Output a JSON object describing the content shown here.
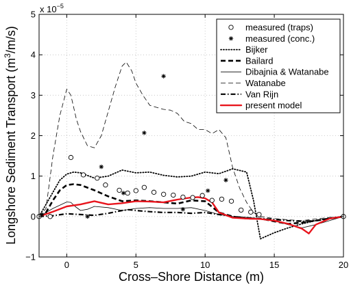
{
  "chart_data": {
    "type": "line",
    "title": "",
    "xlabel": "Cross–Shore Distance (m)",
    "ylabel_prefix": "Longshore Sediment Transport (m",
    "ylabel_sup": "3",
    "ylabel_suffix": "/m/s)",
    "y_multiplier_base": "x 10",
    "y_multiplier_exp": "−5",
    "xlim": [
      -2,
      20
    ],
    "ylim": [
      -1,
      5
    ],
    "grid": true,
    "legend_position": "top-right",
    "x_ticks": [
      0,
      5,
      10,
      15,
      20
    ],
    "x_tick_labels": [
      "0",
      "5",
      "10",
      "15",
      "20"
    ],
    "y_ticks": [
      -1,
      0,
      1,
      2,
      3,
      4,
      5
    ],
    "y_tick_labels": [
      "−1",
      "0",
      "1",
      "2",
      "3",
      "4",
      "5"
    ],
    "series": [
      {
        "name": "measured (traps)",
        "kind": "marker-circle",
        "color": "#000000",
        "x": [
          -2,
          -1.2,
          0.3,
          1.2,
          2.2,
          2.8,
          3.8,
          4.4,
          5.0,
          5.6,
          6.3,
          7.0,
          7.7,
          8.4,
          9.1,
          9.8,
          10.5,
          11.2,
          11.9,
          12.6,
          13.3,
          13.9,
          20
        ],
        "y": [
          0.0,
          0.0,
          1.46,
          1.03,
          0.95,
          0.78,
          0.65,
          0.58,
          0.64,
          0.72,
          0.6,
          0.55,
          0.53,
          0.48,
          0.47,
          0.52,
          0.4,
          0.43,
          0.38,
          0.16,
          0.11,
          0.05,
          0.0
        ]
      },
      {
        "name": "measured (conc.)",
        "kind": "marker-star",
        "color": "#000000",
        "x": [
          -1.8,
          1.5,
          2.5,
          4.1,
          5.6,
          7.0,
          8.4,
          10.2,
          11.5
        ],
        "y": [
          0.05,
          0.0,
          1.23,
          0.58,
          2.07,
          3.47,
          0.18,
          0.64,
          0.9
        ]
      },
      {
        "name": "Bijker",
        "kind": "dotted",
        "color": "#000000",
        "x": [
          -2,
          -1,
          -0.5,
          0,
          0.5,
          1,
          2,
          3,
          4,
          5,
          6,
          7,
          8,
          9,
          10,
          11,
          12,
          13,
          13.5,
          14,
          15,
          16,
          17,
          18,
          19,
          20
        ],
        "y": [
          0.0,
          0.6,
          0.9,
          1.05,
          1.1,
          1.08,
          0.95,
          1.0,
          1.15,
          1.08,
          1.1,
          1.02,
          0.98,
          1.0,
          1.1,
          1.06,
          1.18,
          1.1,
          0.4,
          -0.55,
          -0.4,
          -0.28,
          -0.18,
          -0.1,
          -0.04,
          0.0
        ]
      },
      {
        "name": "Bailard",
        "kind": "dashed-thick",
        "color": "#000000",
        "x": [
          -2,
          -1.5,
          -1,
          -0.5,
          0,
          0.5,
          1,
          2,
          3,
          4,
          5,
          6,
          7,
          8,
          9,
          10,
          11,
          12,
          13,
          14,
          15,
          16,
          17,
          18,
          19,
          20
        ],
        "y": [
          0.0,
          0.1,
          0.4,
          0.65,
          0.78,
          0.8,
          0.78,
          0.65,
          0.5,
          0.38,
          0.4,
          0.38,
          0.35,
          0.32,
          0.4,
          0.38,
          0.1,
          0.0,
          -0.05,
          -0.05,
          -0.12,
          -0.18,
          -0.15,
          -0.1,
          -0.05,
          0.0
        ]
      },
      {
        "name": "Dibajnia & Watanabe",
        "kind": "solid-thin",
        "color": "#000000",
        "x": [
          -2,
          -1,
          -0.5,
          0,
          0.3,
          0.6,
          1,
          1.5,
          2,
          3,
          4,
          5,
          6,
          7,
          8,
          9,
          10,
          11,
          12,
          13,
          14,
          15,
          16,
          17,
          18,
          19,
          20
        ],
        "y": [
          0.0,
          0.2,
          0.28,
          0.36,
          0.35,
          0.25,
          0.15,
          0.18,
          0.25,
          0.22,
          0.15,
          0.2,
          0.22,
          0.2,
          0.2,
          0.22,
          0.15,
          0.05,
          0.0,
          -0.02,
          -0.05,
          -0.1,
          -0.2,
          -0.28,
          -0.2,
          -0.1,
          0.0
        ]
      },
      {
        "name": "Watanabe",
        "kind": "dashed-thin",
        "color": "#000000",
        "x": [
          -2,
          -1.5,
          -1,
          -0.5,
          0,
          0.3,
          0.7,
          1,
          1.5,
          2,
          2.5,
          3,
          3.5,
          4,
          4.3,
          4.7,
          5,
          5.5,
          6,
          6.5,
          7,
          7.5,
          8,
          8.5,
          9,
          9.5,
          10,
          10.5,
          11,
          11.5,
          12,
          12.5,
          13,
          13.5,
          14,
          15,
          16,
          17,
          18,
          19,
          20
        ],
        "y": [
          0.0,
          0.2,
          1.5,
          2.5,
          3.15,
          3.0,
          2.4,
          2.1,
          1.75,
          1.7,
          2.0,
          2.6,
          3.2,
          3.72,
          3.82,
          3.6,
          3.3,
          3.0,
          2.75,
          2.7,
          2.65,
          2.63,
          2.55,
          2.35,
          2.3,
          2.15,
          2.15,
          2.05,
          2.15,
          1.95,
          1.2,
          0.7,
          0.35,
          0.1,
          0.0,
          -0.05,
          -0.08,
          -0.1,
          -0.06,
          -0.02,
          0.0
        ]
      },
      {
        "name": "Van Rijn",
        "kind": "dashdot",
        "color": "#000000",
        "x": [
          -2,
          -1,
          0,
          1,
          2,
          3,
          4,
          4.5,
          5,
          6,
          7,
          8,
          9,
          10,
          11,
          12,
          13,
          14,
          15,
          16,
          17,
          18,
          19,
          20
        ],
        "y": [
          0.0,
          0.02,
          0.07,
          0.05,
          0.03,
          0.08,
          0.15,
          0.17,
          0.15,
          0.12,
          0.1,
          0.1,
          0.08,
          0.1,
          0.05,
          0.0,
          -0.03,
          -0.05,
          -0.07,
          -0.1,
          -0.12,
          -0.1,
          -0.05,
          0.0
        ]
      },
      {
        "name": "present model",
        "kind": "solid-red",
        "color": "#e8141c",
        "x": [
          -2,
          -1,
          0,
          1,
          2,
          3,
          4,
          5,
          6,
          7,
          8,
          9,
          9.5,
          10,
          10.5,
          11,
          12,
          13,
          14,
          15,
          16,
          17,
          17.5,
          18,
          19,
          20
        ],
        "y": [
          0.0,
          0.12,
          0.25,
          0.3,
          0.38,
          0.3,
          0.33,
          0.38,
          0.37,
          0.35,
          0.42,
          0.47,
          0.48,
          0.45,
          0.35,
          0.1,
          -0.03,
          -0.05,
          -0.06,
          -0.1,
          -0.18,
          -0.3,
          -0.42,
          -0.2,
          -0.05,
          0.0
        ]
      }
    ]
  }
}
